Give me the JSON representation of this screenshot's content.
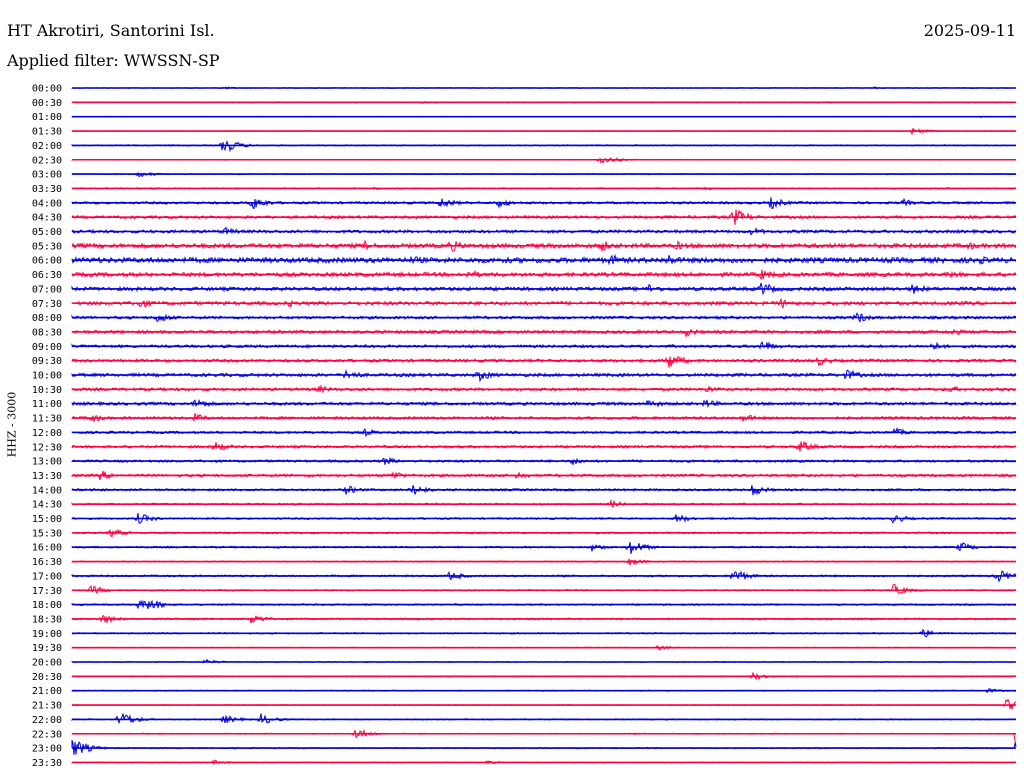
{
  "header": {
    "station": "HT Akrotiri, Santorini Isl.",
    "date": "2025-09-11",
    "filter": "Applied filter: WWSSN-SP",
    "ylabel": "HHZ - 3000"
  },
  "colors": {
    "odd_line": "#0000dd",
    "even_line": "#ff0040",
    "text": "#000000"
  },
  "chart_data": {
    "type": "line",
    "title": "HT Akrotiri, Santorini Isl.",
    "ylabel": "HHZ - 3000",
    "date": "2025-09-11",
    "tick_labels": [
      "00:00",
      "00:30",
      "01:00",
      "01:30",
      "02:00",
      "02:30",
      "03:00",
      "03:30",
      "04:00",
      "04:30",
      "05:00",
      "05:30",
      "06:00",
      "06:30",
      "07:00",
      "07:30",
      "08:00",
      "08:30",
      "09:00",
      "09:30",
      "10:00",
      "10:30",
      "11:00",
      "11:30",
      "12:00",
      "12:30",
      "13:00",
      "13:30",
      "14:00",
      "14:30",
      "15:00",
      "15:30",
      "16:00",
      "16:30",
      "17:00",
      "17:30",
      "18:00",
      "18:30",
      "19:00",
      "19:30",
      "20:00",
      "20:30",
      "21:00",
      "21:30",
      "22:00",
      "22:30",
      "23:00",
      "23:30"
    ],
    "trace_colors": [
      "#0000dd",
      "#ff0040"
    ],
    "noise": [
      0.4,
      0.5,
      0.3,
      0.3,
      0.6,
      0.4,
      0.5,
      0.7,
      1.2,
      1.4,
      1.5,
      2.2,
      2.6,
      2.0,
      1.8,
      1.7,
      1.4,
      1.6,
      1.4,
      1.5,
      1.6,
      1.4,
      1.5,
      1.4,
      1.2,
      1.3,
      1.2,
      1.3,
      1.1,
      0.9,
      0.9,
      0.9,
      0.9,
      0.6,
      0.9,
      0.7,
      0.8,
      0.9,
      0.7,
      0.5,
      0.5,
      0.5,
      0.5,
      0.4,
      0.6,
      0.5,
      0.6,
      0.5
    ],
    "events": [
      [
        [
          0.16,
          1.5
        ],
        [
          0.85,
          1.2
        ]
      ],
      [
        [
          0.37,
          1.2
        ],
        [
          0.8,
          0.9
        ]
      ],
      [
        [
          0.96,
          1.0
        ]
      ],
      [
        [
          0.89,
          3.5
        ]
      ],
      [
        [
          0.16,
          8.5
        ],
        [
          0.06,
          1.2
        ]
      ],
      [
        [
          0.56,
          5.0
        ]
      ],
      [
        [
          0.07,
          3.5
        ]
      ],
      [
        [
          0.32,
          1.6
        ],
        [
          0.67,
          1.8
        ]
      ],
      [
        [
          0.19,
          8.0
        ],
        [
          0.39,
          6.0
        ],
        [
          0.45,
          5.5
        ],
        [
          0.74,
          6.5
        ],
        [
          0.88,
          4.0
        ]
      ],
      [
        [
          0.7,
          10.0
        ]
      ],
      [
        [
          0.16,
          5.0
        ],
        [
          0.72,
          4.5
        ]
      ],
      [
        [
          0.31,
          5.0
        ],
        [
          0.4,
          7.0
        ],
        [
          0.56,
          6.5
        ],
        [
          0.64,
          5.0
        ],
        [
          0.95,
          4.5
        ]
      ],
      [
        [
          0.36,
          5.0
        ],
        [
          0.57,
          6.5
        ],
        [
          0.63,
          7.0
        ],
        [
          0.96,
          5.0
        ]
      ],
      [
        [
          0.42,
          5.5
        ],
        [
          0.73,
          6.0
        ],
        [
          0.93,
          4.5
        ]
      ],
      [
        [
          0.61,
          5.5
        ],
        [
          0.73,
          7.5
        ],
        [
          0.89,
          6.0
        ]
      ],
      [
        [
          0.07,
          6.0
        ],
        [
          0.23,
          4.0
        ],
        [
          0.75,
          5.5
        ]
      ],
      [
        [
          0.09,
          6.0
        ],
        [
          0.83,
          6.5
        ]
      ],
      [
        [
          0.65,
          5.0
        ],
        [
          0.93,
          4.5
        ]
      ],
      [
        [
          0.73,
          6.5
        ],
        [
          0.91,
          5.0
        ]
      ],
      [
        [
          0.63,
          10.0
        ],
        [
          0.79,
          5.5
        ]
      ],
      [
        [
          0.29,
          6.5
        ],
        [
          0.43,
          7.0
        ],
        [
          0.82,
          6.0
        ]
      ],
      [
        [
          0.26,
          4.5
        ],
        [
          0.67,
          4.5
        ],
        [
          0.93,
          3.5
        ]
      ],
      [
        [
          0.13,
          6.5
        ],
        [
          0.61,
          5.5
        ],
        [
          0.67,
          5.0
        ]
      ],
      [
        [
          0.02,
          5.0
        ],
        [
          0.13,
          5.0
        ],
        [
          0.71,
          5.0
        ]
      ],
      [
        [
          0.31,
          4.0
        ],
        [
          0.87,
          5.0
        ]
      ],
      [
        [
          0.15,
          6.0
        ],
        [
          0.77,
          7.0
        ]
      ],
      [
        [
          0.33,
          4.5
        ],
        [
          0.53,
          4.5
        ]
      ],
      [
        [
          0.03,
          5.5
        ],
        [
          0.34,
          5.0
        ],
        [
          0.47,
          5.0
        ]
      ],
      [
        [
          0.29,
          5.0
        ],
        [
          0.36,
          6.5
        ],
        [
          0.72,
          6.5
        ]
      ],
      [
        [
          0.57,
          4.0
        ]
      ],
      [
        [
          0.07,
          6.0
        ],
        [
          0.64,
          5.0
        ],
        [
          0.87,
          5.0
        ]
      ],
      [
        [
          0.04,
          5.0
        ]
      ],
      [
        [
          0.55,
          4.5
        ],
        [
          0.59,
          8.5
        ],
        [
          0.94,
          5.5
        ]
      ],
      [
        [
          0.59,
          4.0
        ]
      ],
      [
        [
          0.4,
          5.0
        ],
        [
          0.7,
          8.0
        ],
        [
          0.98,
          7.0
        ]
      ],
      [
        [
          0.02,
          5.0
        ],
        [
          0.87,
          6.5
        ]
      ],
      [
        [
          0.07,
          5.0
        ],
        [
          0.08,
          7.5
        ]
      ],
      [
        [
          0.03,
          6.0
        ],
        [
          0.19,
          5.5
        ]
      ],
      [
        [
          0.9,
          5.0
        ]
      ],
      [
        [
          0.62,
          3.0
        ]
      ],
      [
        [
          0.14,
          3.0
        ]
      ],
      [
        [
          0.72,
          4.5
        ]
      ],
      [
        [
          0.97,
          2.5
        ]
      ],
      [
        [
          0.99,
          6.5
        ]
      ],
      [
        [
          0.05,
          9.0
        ],
        [
          0.16,
          5.0
        ],
        [
          0.2,
          6.0
        ]
      ],
      [
        [
          0.3,
          6.0
        ],
        [
          1.0,
          15.0
        ]
      ],
      [
        [
          0.0,
          11.0
        ],
        [
          1.0,
          8.0
        ]
      ],
      [
        [
          0.15,
          2.5
        ],
        [
          0.44,
          2.0
        ]
      ]
    ]
  }
}
